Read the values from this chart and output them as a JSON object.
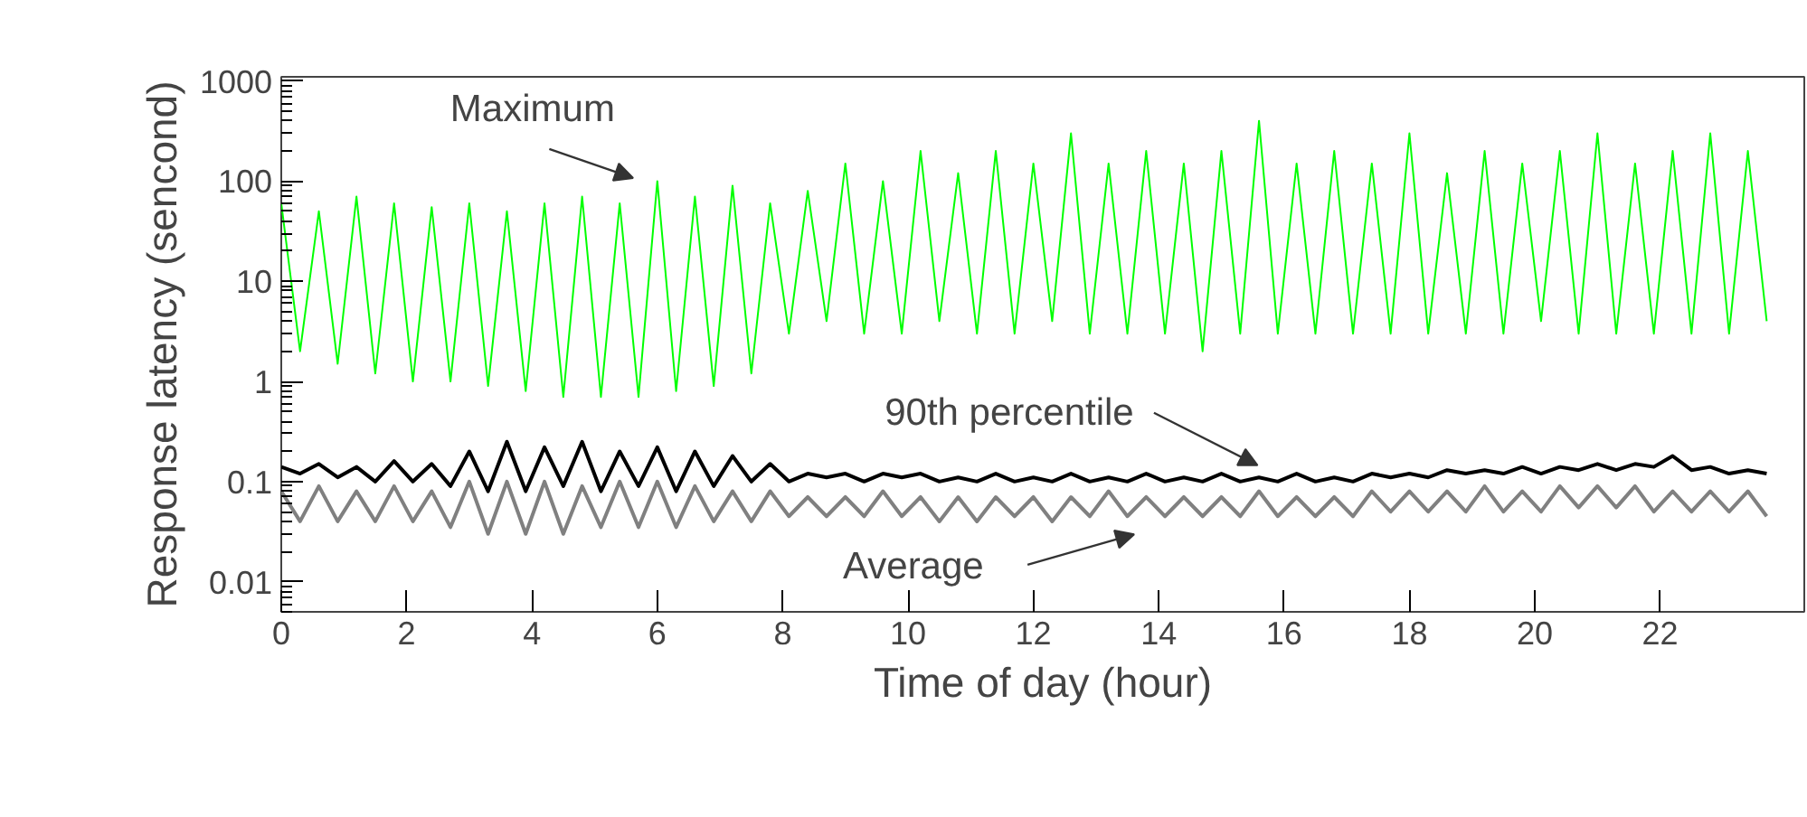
{
  "chart_data": {
    "type": "line",
    "xlabel": "Time of day (hour)",
    "ylabel": "Response latency (sencond)",
    "log": "y",
    "grid": false,
    "line_style": "solid",
    "xlim": [
      0,
      24.3
    ],
    "xticks": [
      0,
      2,
      4,
      6,
      8,
      10,
      12,
      14,
      16,
      18,
      20,
      22
    ],
    "ylim": [
      0.005,
      1100
    ],
    "yticks": [
      0.01,
      0.1,
      1,
      10,
      100,
      1000
    ],
    "x": [
      0,
      0.3,
      0.6,
      0.9,
      1.2,
      1.5,
      1.8,
      2.1,
      2.4,
      2.7,
      3.0,
      3.3,
      3.6,
      3.9,
      4.2,
      4.5,
      4.8,
      5.1,
      5.4,
      5.7,
      6.0,
      6.3,
      6.6,
      6.9,
      7.2,
      7.5,
      7.8,
      8.1,
      8.4,
      8.7,
      9.0,
      9.3,
      9.6,
      9.9,
      10.2,
      10.5,
      10.8,
      11.1,
      11.4,
      11.7,
      12.0,
      12.3,
      12.6,
      12.9,
      13.2,
      13.5,
      13.8,
      14.1,
      14.4,
      14.7,
      15.0,
      15.3,
      15.6,
      15.9,
      16.2,
      16.5,
      16.8,
      17.1,
      17.4,
      17.7,
      18.0,
      18.3,
      18.6,
      18.9,
      19.2,
      19.5,
      19.8,
      20.1,
      20.4,
      20.7,
      21.0,
      21.3,
      21.6,
      21.9,
      22.2,
      22.5,
      22.8,
      23.1,
      23.4,
      23.7
    ],
    "series": [
      {
        "color": "#00ff00",
        "values": [
          60,
          2,
          50,
          1.5,
          70,
          1.2,
          60,
          1,
          55,
          1,
          60,
          0.9,
          50,
          0.8,
          60,
          0.7,
          70,
          0.7,
          60,
          0.7,
          100,
          0.8,
          70,
          0.9,
          90,
          1.2,
          60,
          3,
          80,
          4,
          150,
          3,
          100,
          3,
          200,
          4,
          120,
          3,
          200,
          3,
          150,
          4,
          300,
          3,
          150,
          3,
          200,
          3,
          150,
          2,
          200,
          3,
          400,
          3,
          150,
          3,
          200,
          3,
          150,
          3,
          300,
          3,
          120,
          3,
          200,
          3,
          150,
          4,
          200,
          3,
          300,
          3,
          150,
          3,
          200,
          3,
          300,
          3,
          200,
          4
        ]
      },
      {
        "color": "#808080",
        "values": [
          0.08,
          0.04,
          0.09,
          0.04,
          0.08,
          0.04,
          0.09,
          0.04,
          0.08,
          0.035,
          0.1,
          0.03,
          0.1,
          0.03,
          0.1,
          0.03,
          0.09,
          0.035,
          0.1,
          0.035,
          0.1,
          0.035,
          0.09,
          0.04,
          0.08,
          0.04,
          0.08,
          0.045,
          0.07,
          0.045,
          0.07,
          0.045,
          0.08,
          0.045,
          0.07,
          0.04,
          0.07,
          0.04,
          0.07,
          0.045,
          0.07,
          0.04,
          0.07,
          0.045,
          0.08,
          0.045,
          0.07,
          0.045,
          0.07,
          0.045,
          0.07,
          0.045,
          0.08,
          0.045,
          0.07,
          0.045,
          0.07,
          0.045,
          0.08,
          0.05,
          0.08,
          0.05,
          0.08,
          0.05,
          0.09,
          0.05,
          0.08,
          0.05,
          0.09,
          0.055,
          0.09,
          0.055,
          0.09,
          0.05,
          0.08,
          0.05,
          0.08,
          0.05,
          0.08,
          0.045
        ]
      },
      {
        "color": "#000000",
        "values": [
          0.14,
          0.12,
          0.15,
          0.11,
          0.14,
          0.1,
          0.16,
          0.1,
          0.15,
          0.09,
          0.2,
          0.08,
          0.25,
          0.08,
          0.22,
          0.09,
          0.25,
          0.08,
          0.2,
          0.09,
          0.22,
          0.08,
          0.2,
          0.09,
          0.18,
          0.1,
          0.15,
          0.1,
          0.12,
          0.11,
          0.12,
          0.1,
          0.12,
          0.11,
          0.12,
          0.1,
          0.11,
          0.1,
          0.12,
          0.1,
          0.11,
          0.1,
          0.12,
          0.1,
          0.11,
          0.1,
          0.12,
          0.1,
          0.11,
          0.1,
          0.12,
          0.1,
          0.11,
          0.1,
          0.12,
          0.1,
          0.11,
          0.1,
          0.12,
          0.11,
          0.12,
          0.11,
          0.13,
          0.12,
          0.13,
          0.12,
          0.14,
          0.12,
          0.14,
          0.13,
          0.15,
          0.13,
          0.15,
          0.14,
          0.18,
          0.13,
          0.14,
          0.12,
          0.13,
          0.12
        ]
      }
    ],
    "annotations": [
      "Maximum",
      "90th percentile",
      "Average"
    ]
  }
}
